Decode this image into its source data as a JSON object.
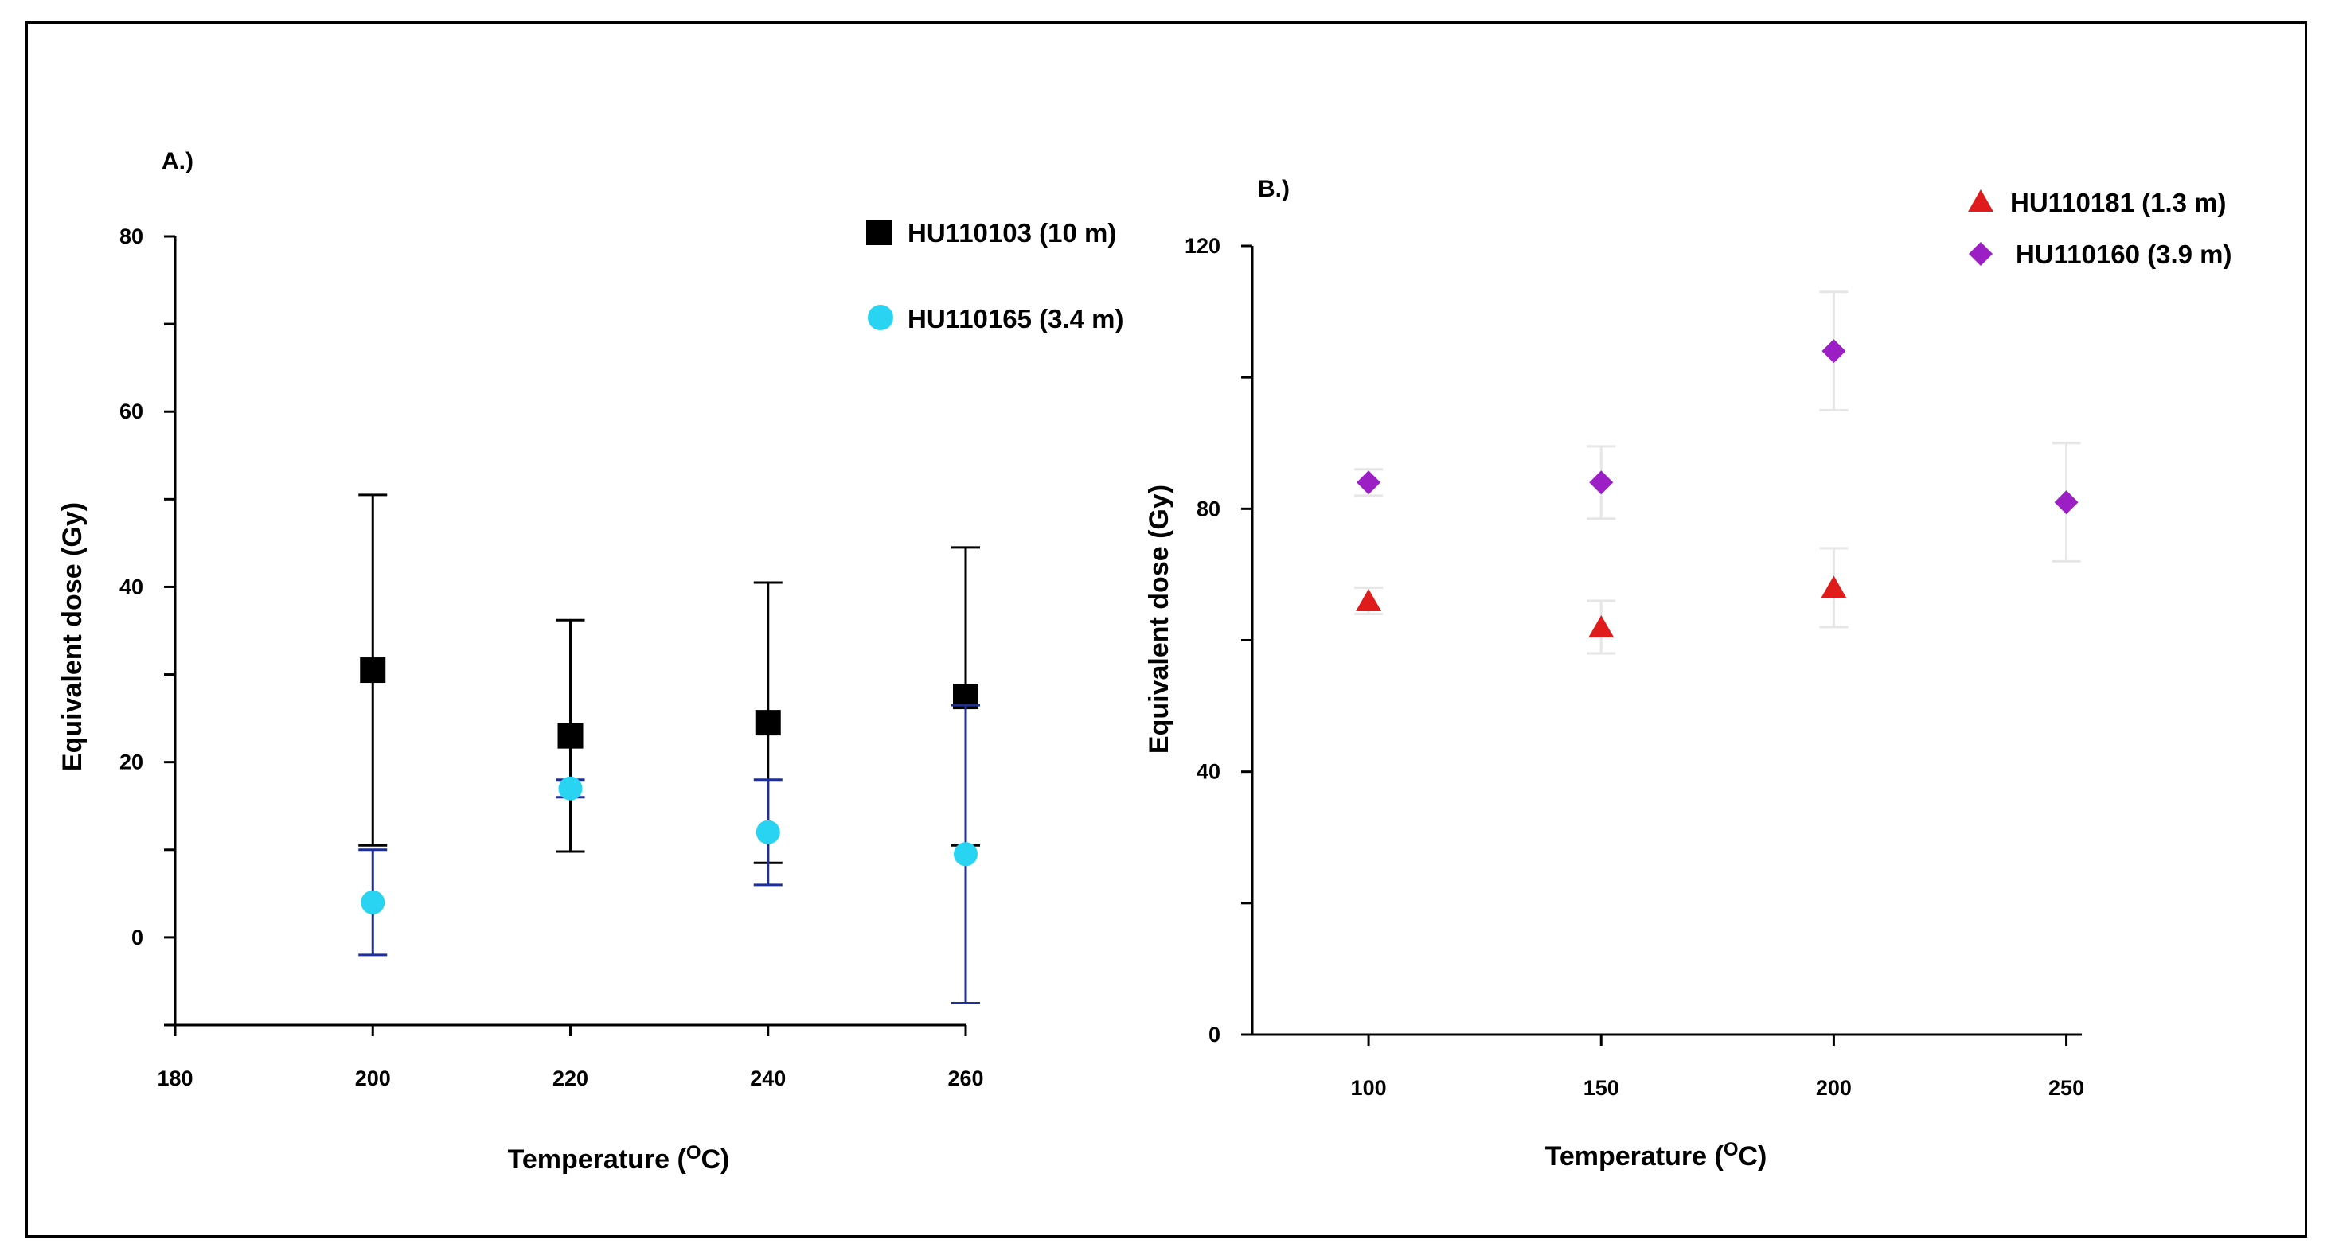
{
  "chart_data": [
    {
      "type": "scatter",
      "panel_label": "A.)",
      "xlabel": "Temperature (",
      "xlabel_sup": "O",
      "xlabel_end": "C)",
      "ylabel": "Equivalent dose (Gy)",
      "xlim": [
        180,
        260
      ],
      "ylim": [
        -10,
        80
      ],
      "x_ticks": [
        180,
        200,
        220,
        240,
        260
      ],
      "y_ticks": [
        0,
        20,
        40,
        60,
        80
      ],
      "y_minor_ticks": [
        -10,
        10,
        30,
        50,
        70
      ],
      "series": [
        {
          "name": "HU110103 (10 m)",
          "marker": "square",
          "color": "#000000",
          "error_color": "#000000",
          "x": [
            200,
            220,
            240,
            260
          ],
          "y": [
            30.5,
            23,
            24.5,
            27.5
          ],
          "err": [
            20,
            13.2,
            16,
            17
          ]
        },
        {
          "name": "HU110165 (3.4 m)",
          "marker": "circle",
          "color": "#29d4f2",
          "error_color": "#1f2f9a",
          "x": [
            200,
            220,
            240,
            260
          ],
          "y": [
            4,
            17,
            12,
            9.5
          ],
          "err": [
            6,
            1,
            6,
            17
          ]
        }
      ]
    },
    {
      "type": "scatter",
      "panel_label": "B.)",
      "xlabel": "Temperature (",
      "xlabel_sup": "O",
      "xlabel_end": "C)",
      "ylabel": "Equivalent dose (Gy)",
      "xlim": [
        75,
        260
      ],
      "ylim": [
        0,
        120
      ],
      "x_ticks": [
        100,
        150,
        200,
        250
      ],
      "y_ticks": [
        0,
        40,
        80,
        120
      ],
      "y_minor_ticks": [
        20,
        60,
        100
      ],
      "series": [
        {
          "name": "HU110181 (1.3 m)",
          "marker": "triangle",
          "color": "#e01b1b",
          "error_color": "#e6e6e6",
          "x": [
            100,
            150,
            200
          ],
          "y": [
            66,
            62,
            68
          ],
          "err": [
            2,
            4,
            6
          ]
        },
        {
          "name": "HU110160 (3.9 m)",
          "marker": "diamond",
          "color": "#9b1fc4",
          "error_color": "#e6e6e6",
          "x": [
            100,
            150,
            200,
            250
          ],
          "y": [
            84,
            84,
            104,
            81
          ],
          "err": [
            2,
            5.5,
            9,
            9
          ]
        }
      ]
    }
  ]
}
